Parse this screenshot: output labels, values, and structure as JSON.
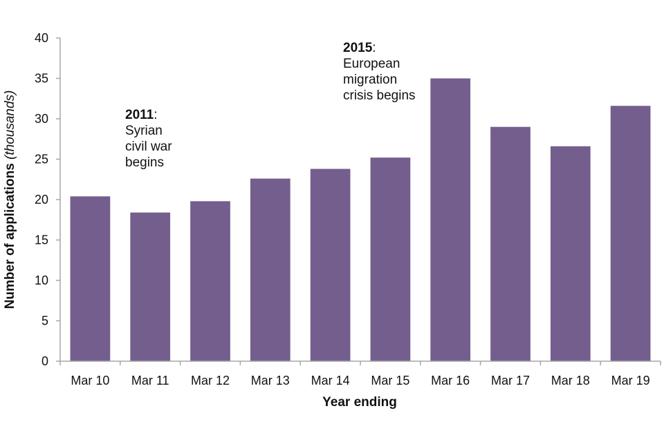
{
  "chart_data": {
    "type": "bar",
    "title": "",
    "xlabel": "Year ending",
    "ylabel": "Number of applications",
    "ylabel_italic_suffix": "(thousands)",
    "ylim": [
      0,
      40
    ],
    "yticks": [
      0,
      5,
      10,
      15,
      20,
      25,
      30,
      35,
      40
    ],
    "grid": false,
    "legend": "none",
    "categories": [
      "Mar 10",
      "Mar 11",
      "Mar 12",
      "Mar 13",
      "Mar 14",
      "Mar 15",
      "Mar 16",
      "Mar 17",
      "Mar 18",
      "Mar 19"
    ],
    "series": [
      {
        "name": "Applications (thousands)",
        "color": "#745e8e",
        "values": [
          20.4,
          18.4,
          19.8,
          22.6,
          23.8,
          25.2,
          35.0,
          29.0,
          26.6,
          31.6
        ]
      }
    ],
    "annotations": [
      {
        "category": "Mar 11",
        "bold": "2011",
        "rest": ":",
        "lines": [
          "Syrian",
          "civil war",
          "begins"
        ]
      },
      {
        "category": "Mar 15",
        "bold": "2015",
        "rest": ":",
        "lines": [
          "European",
          "migration",
          "crisis begins"
        ]
      }
    ]
  },
  "colors": {
    "bar": "#745e8e",
    "axis": "#a6a6a6"
  }
}
